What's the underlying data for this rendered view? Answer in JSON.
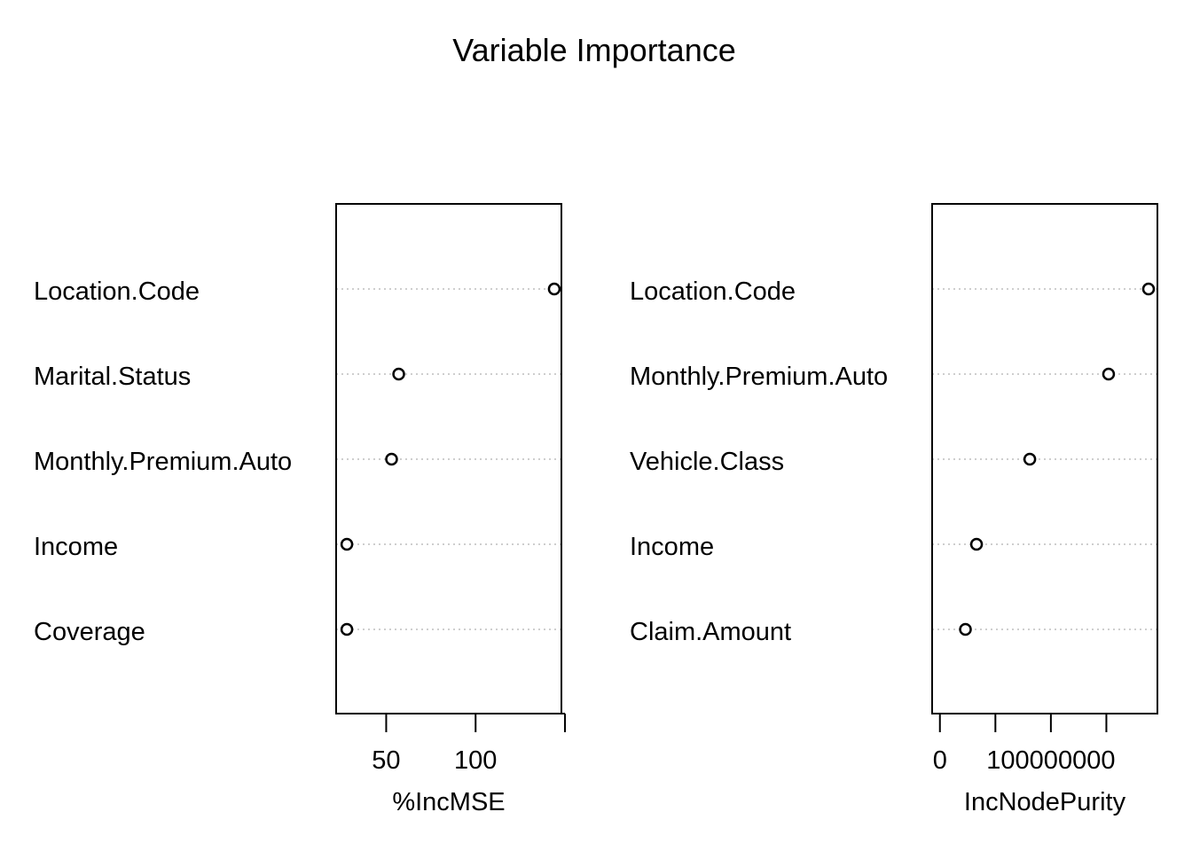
{
  "chart_data": [
    {
      "type": "scatter",
      "variant": "dotchart",
      "xlabel": "%IncMSE",
      "categories": [
        "Location.Code",
        "Marital.Status",
        "Monthly.Premium.Auto",
        "Income",
        "Coverage"
      ],
      "values": [
        144,
        57,
        53,
        28,
        28
      ],
      "xlim": [
        22,
        148
      ],
      "ticks": [
        50,
        100,
        150
      ],
      "tick_labels": [
        "50",
        "100",
        ""
      ],
      "grid": "dotted horizontal"
    },
    {
      "type": "scatter",
      "variant": "dotchart",
      "xlabel": "IncNodePurity",
      "categories": [
        "Location.Code",
        "Monthly.Premium.Auto",
        "Vehicle.Class",
        "Income",
        "Claim.Amount"
      ],
      "values": [
        188000000,
        152000000,
        81000000,
        33000000,
        23000000
      ],
      "xlim": [
        -7000000,
        196000000
      ],
      "ticks": [
        0,
        50000000,
        100000000,
        150000000
      ],
      "tick_labels": [
        "0",
        "",
        "100000000",
        ""
      ],
      "grid": "dotted horizontal"
    }
  ],
  "figure": {
    "title": "Variable Importance"
  }
}
